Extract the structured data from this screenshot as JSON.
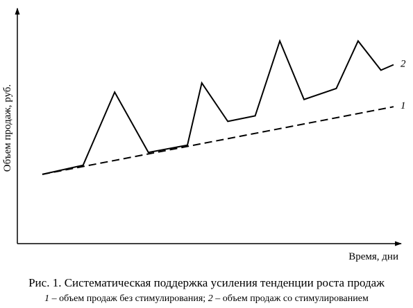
{
  "chart_data": {
    "type": "line",
    "xlabel": "Время, дни",
    "ylabel": "Объем продаж, руб.",
    "grid": false,
    "xlim": [
      0,
      100
    ],
    "ylim": [
      0,
      100
    ],
    "series": [
      {
        "name": "1",
        "style": "dashed",
        "x": [
          0,
          100
        ],
        "y": [
          22,
          59
        ]
      },
      {
        "name": "2",
        "style": "solid",
        "x": [
          0,
          11.6,
          20.6,
          30.2,
          41.3,
          45.4,
          52.8,
          60.6,
          67.6,
          74.5,
          83.7,
          89.9,
          96.4,
          100
        ],
        "y": [
          22,
          27,
          67,
          34,
          38,
          72,
          51,
          54,
          95,
          63,
          69,
          95,
          79,
          82
        ]
      }
    ]
  },
  "caption": {
    "title": "Рис. 1. Систематическая поддержка усиления тенденции роста продаж",
    "legend_1_num": "1",
    "legend_1_text": " – объем продаж без стимулирования; ",
    "legend_2_num": "2",
    "legend_2_text": " – объем продаж со стимулированием"
  }
}
